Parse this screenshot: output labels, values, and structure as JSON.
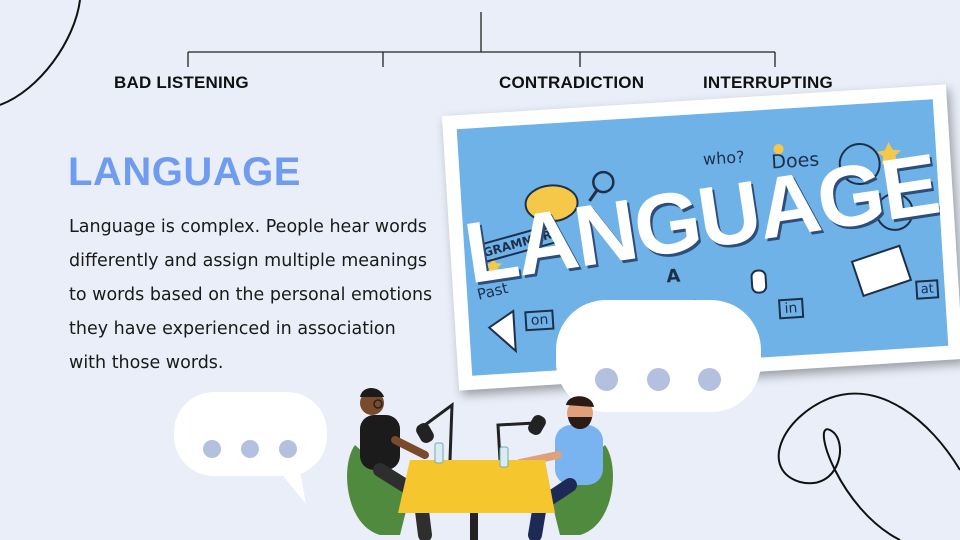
{
  "tree": {
    "branches": [
      {
        "label": "BAD LISTENING"
      },
      {
        "label": ""
      },
      {
        "label": "CONTRADICTION"
      },
      {
        "label": "INTERRUPTING"
      }
    ]
  },
  "slide": {
    "title": "LANGUAGE",
    "body_lines": [
      "Language is complex. People hear words",
      "differently and assign multiple meanings",
      "to words based on the personal emotions",
      "they have experienced in association",
      "with those words."
    ]
  },
  "photo": {
    "word": "LANGUAGE",
    "doodles": {
      "grammar": "GRAMMAR",
      "who": "who?",
      "does": "Does",
      "past": "Past",
      "on": "on",
      "in": "in",
      "at": "at",
      "a": "A"
    }
  },
  "colors": {
    "background": "#e9eef8",
    "title": "#6f9cf0",
    "photo_bg": "#6fb2e8",
    "bubble_dot": "#b3c1df"
  },
  "icons": {
    "speech_bubble_large": "speech-bubble-icon",
    "speech_bubble_small": "speech-bubble-icon",
    "podcasters": "podcast-illustration"
  }
}
